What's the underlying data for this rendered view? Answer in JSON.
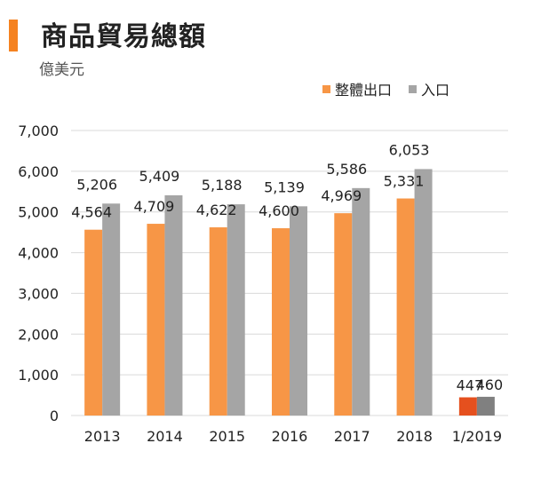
{
  "header": {
    "title": "商品貿易總額",
    "subtitle": "億美元"
  },
  "colors": {
    "accent": "#F58220",
    "export": "#F79646",
    "import": "#A5A5A5",
    "export_highlight": "#E5501E",
    "import_highlight": "#808080",
    "grid": "#D9D9D9"
  },
  "chart_data": {
    "type": "bar",
    "title": "商品貿易總額",
    "ylabel": "億美元",
    "xlabel": "",
    "categories": [
      "2013",
      "2014",
      "2015",
      "2016",
      "2017",
      "2018",
      "1/2019"
    ],
    "series": [
      {
        "name": "整體出口",
        "values": [
          4564,
          4709,
          4622,
          4600,
          4969,
          5331,
          447
        ],
        "labels": [
          "4,564",
          "4,709",
          "4,622",
          "4,600",
          "4,969",
          "5,331",
          "447"
        ]
      },
      {
        "name": "入口",
        "values": [
          5206,
          5409,
          5188,
          5139,
          5586,
          6053,
          460
        ],
        "labels": [
          "5,206",
          "5,409",
          "5,188",
          "5,139",
          "5,586",
          "6,053",
          "460"
        ]
      }
    ],
    "ylim": [
      0,
      7000
    ],
    "yticks": [
      0,
      1000,
      2000,
      3000,
      4000,
      5000,
      6000,
      7000
    ],
    "ytick_labels": [
      "0",
      "1,000",
      "2,000",
      "3,000",
      "4,000",
      "5,000",
      "6,000",
      "7,000"
    ],
    "grid": true,
    "legend_position": "top-right"
  }
}
